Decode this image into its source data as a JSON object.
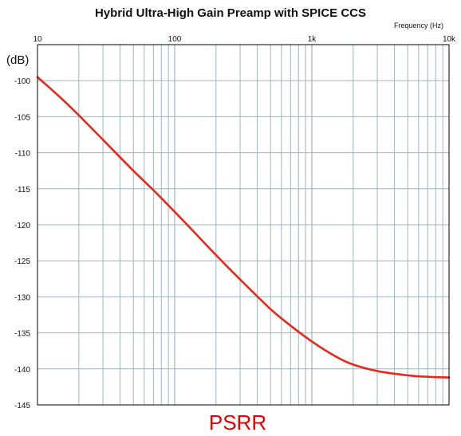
{
  "chart_data": {
    "type": "line",
    "title": "Hybrid Ultra-High Gain Preamp with SPICE CCS",
    "xlabel": "Frequency (Hz)",
    "ylabel": "(dB)",
    "caption": "PSRR",
    "x_scale": "log",
    "xlim": [
      10,
      10000
    ],
    "ylim": [
      -145,
      -95
    ],
    "x_major_ticks": [
      {
        "value": 10,
        "label": "10"
      },
      {
        "value": 100,
        "label": "100"
      },
      {
        "value": 1000,
        "label": "1k"
      },
      {
        "value": 10000,
        "label": "10k"
      }
    ],
    "y_ticks": [
      {
        "value": -100,
        "label": "-100"
      },
      {
        "value": -105,
        "label": "-105"
      },
      {
        "value": -110,
        "label": "-110"
      },
      {
        "value": -115,
        "label": "-115"
      },
      {
        "value": -120,
        "label": "-120"
      },
      {
        "value": -125,
        "label": "-125"
      },
      {
        "value": -130,
        "label": "-130"
      },
      {
        "value": -135,
        "label": "-135"
      },
      {
        "value": -140,
        "label": "-140"
      },
      {
        "value": -145,
        "label": "-145"
      }
    ],
    "grid": true,
    "series": [
      {
        "name": "",
        "color": "#e8271b",
        "x": [
          10,
          15,
          20,
          30,
          50,
          70,
          100,
          150,
          200,
          300,
          500,
          700,
          1000,
          1500,
          2000,
          3000,
          5000,
          7000,
          10000
        ],
        "y": [
          -99.5,
          -102.5,
          -104.8,
          -108.2,
          -112.5,
          -115.2,
          -118.2,
          -121.7,
          -124.2,
          -127.6,
          -131.7,
          -134.0,
          -136.2,
          -138.3,
          -139.4,
          -140.3,
          -140.9,
          -141.1,
          -141.2
        ]
      }
    ]
  }
}
